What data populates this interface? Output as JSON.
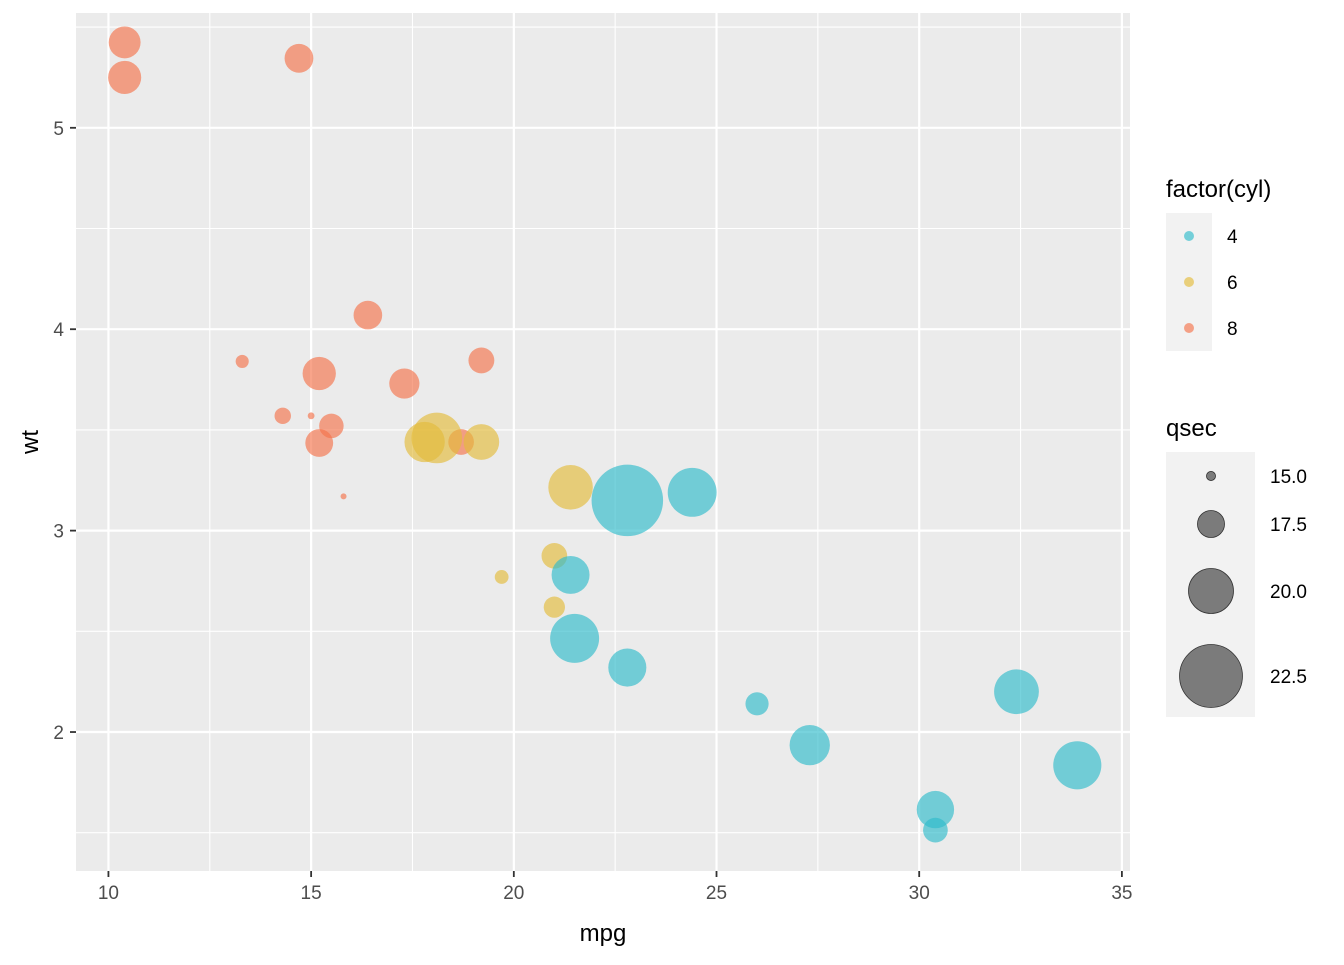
{
  "chart_data": {
    "type": "scatter",
    "title": "",
    "xlabel": "mpg",
    "ylabel": "wt",
    "xlim": [
      9.2,
      35.2
    ],
    "ylim": [
      1.31,
      5.57
    ],
    "x_ticks": [
      10,
      15,
      20,
      25,
      30,
      35
    ],
    "x_tick_labels": [
      "10",
      "15",
      "20",
      "25",
      "30",
      "35"
    ],
    "y_ticks": [
      2,
      3,
      4,
      5
    ],
    "y_tick_labels": [
      "2",
      "3",
      "4",
      "5"
    ],
    "grid": true,
    "panel_background": "#ebebeb",
    "point_alpha": 0.65,
    "color_legend": {
      "title": "factor(cyl)",
      "placement": "right",
      "entries": [
        {
          "label": "4",
          "color": "#2fbccb"
        },
        {
          "label": "6",
          "color": "#e3bc3a"
        },
        {
          "label": "8",
          "color": "#f5734b"
        }
      ]
    },
    "size_legend": {
      "title": "qsec",
      "placement": "right",
      "color": "#666666",
      "entries": [
        {
          "label": "15.0",
          "value": 15.0
        },
        {
          "label": "17.5",
          "value": 17.5
        },
        {
          "label": "20.0",
          "value": 20.0
        },
        {
          "label": "22.5",
          "value": 22.5
        }
      ]
    },
    "points": [
      {
        "mpg": 21.0,
        "wt": 2.62,
        "qsec": 16.46,
        "cyl": "6"
      },
      {
        "mpg": 21.0,
        "wt": 2.875,
        "qsec": 17.02,
        "cyl": "6"
      },
      {
        "mpg": 22.8,
        "wt": 2.32,
        "qsec": 18.61,
        "cyl": "4"
      },
      {
        "mpg": 21.4,
        "wt": 3.215,
        "qsec": 19.44,
        "cyl": "6"
      },
      {
        "mpg": 18.7,
        "wt": 3.44,
        "qsec": 17.02,
        "cyl": "8"
      },
      {
        "mpg": 18.1,
        "wt": 3.46,
        "qsec": 20.22,
        "cyl": "6"
      },
      {
        "mpg": 14.3,
        "wt": 3.57,
        "qsec": 15.84,
        "cyl": "8"
      },
      {
        "mpg": 24.4,
        "wt": 3.19,
        "qsec": 20.0,
        "cyl": "4"
      },
      {
        "mpg": 22.8,
        "wt": 3.15,
        "qsec": 22.9,
        "cyl": "4"
      },
      {
        "mpg": 19.2,
        "wt": 3.44,
        "qsec": 18.3,
        "cyl": "6"
      },
      {
        "mpg": 17.8,
        "wt": 3.44,
        "qsec": 18.9,
        "cyl": "6"
      },
      {
        "mpg": 16.4,
        "wt": 4.07,
        "qsec": 17.4,
        "cyl": "8"
      },
      {
        "mpg": 17.3,
        "wt": 3.73,
        "qsec": 17.6,
        "cyl": "8"
      },
      {
        "mpg": 15.2,
        "wt": 3.78,
        "qsec": 18.0,
        "cyl": "8"
      },
      {
        "mpg": 10.4,
        "wt": 5.25,
        "qsec": 17.98,
        "cyl": "8"
      },
      {
        "mpg": 10.4,
        "wt": 5.424,
        "qsec": 17.82,
        "cyl": "8"
      },
      {
        "mpg": 14.7,
        "wt": 5.345,
        "qsec": 17.42,
        "cyl": "8"
      },
      {
        "mpg": 32.4,
        "wt": 2.2,
        "qsec": 19.47,
        "cyl": "4"
      },
      {
        "mpg": 30.4,
        "wt": 1.615,
        "qsec": 18.52,
        "cyl": "4"
      },
      {
        "mpg": 33.9,
        "wt": 1.835,
        "qsec": 19.9,
        "cyl": "4"
      },
      {
        "mpg": 21.5,
        "wt": 2.465,
        "qsec": 20.01,
        "cyl": "4"
      },
      {
        "mpg": 15.5,
        "wt": 3.52,
        "qsec": 16.87,
        "cyl": "8"
      },
      {
        "mpg": 15.2,
        "wt": 3.435,
        "qsec": 17.3,
        "cyl": "8"
      },
      {
        "mpg": 13.3,
        "wt": 3.84,
        "qsec": 15.41,
        "cyl": "8"
      },
      {
        "mpg": 19.2,
        "wt": 3.845,
        "qsec": 17.05,
        "cyl": "8"
      },
      {
        "mpg": 27.3,
        "wt": 1.935,
        "qsec": 18.9,
        "cyl": "4"
      },
      {
        "mpg": 26.0,
        "wt": 2.14,
        "qsec": 16.7,
        "cyl": "4"
      },
      {
        "mpg": 30.4,
        "wt": 1.513,
        "qsec": 16.9,
        "cyl": "4"
      },
      {
        "mpg": 15.8,
        "wt": 3.17,
        "qsec": 14.5,
        "cyl": "8"
      },
      {
        "mpg": 19.7,
        "wt": 2.77,
        "qsec": 15.5,
        "cyl": "6"
      },
      {
        "mpg": 15.0,
        "wt": 3.57,
        "qsec": 14.6,
        "cyl": "8"
      },
      {
        "mpg": 21.4,
        "wt": 2.78,
        "qsec": 18.6,
        "cyl": "4"
      }
    ]
  }
}
